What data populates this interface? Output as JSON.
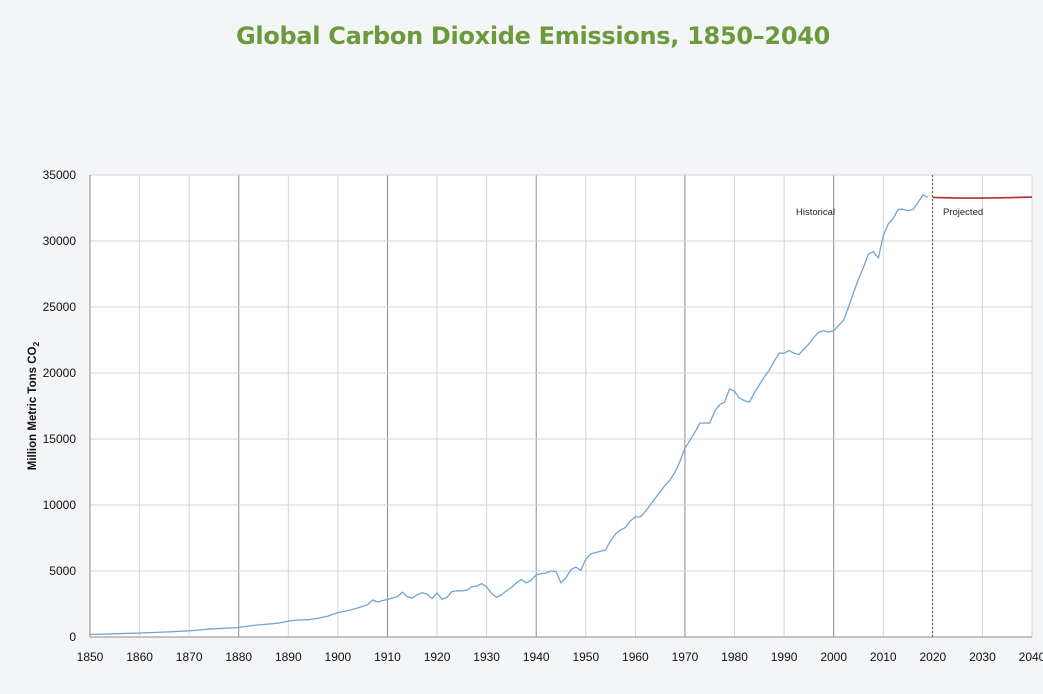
{
  "chart_data": {
    "type": "line",
    "title": "Global Carbon Dioxide Emissions, 1850–2040",
    "xlabel": "",
    "ylabel": "Million Metric Tons CO",
    "ylabel_subscript": "2",
    "xlim": [
      1850,
      2040
    ],
    "ylim": [
      0,
      35000
    ],
    "x_ticks": [
      "1850",
      "1860",
      "1870",
      "1880",
      "1890",
      "1900",
      "1910",
      "1920",
      "1930",
      "1940",
      "1950",
      "1960",
      "1970",
      "1980",
      "1990",
      "2000",
      "2010",
      "2020",
      "2030",
      "2040"
    ],
    "y_ticks": [
      "0",
      "5000",
      "10000",
      "15000",
      "20000",
      "25000",
      "30000",
      "35000"
    ],
    "grid": true,
    "annotations": [
      "Historical",
      "Projected"
    ],
    "colors": {
      "historical": "#6fa6d2",
      "projected": "#c0282e",
      "title": "#6a9a3b",
      "grid_minor": "#d4d4d4",
      "grid_major": "#8c8c8c",
      "divider": "#555555"
    },
    "series": [
      {
        "key": "historical",
        "x": [
          1850,
          1852,
          1854,
          1856,
          1858,
          1860,
          1862,
          1864,
          1866,
          1868,
          1870,
          1872,
          1874,
          1876,
          1878,
          1880,
          1882,
          1884,
          1886,
          1888,
          1890,
          1892,
          1894,
          1896,
          1898,
          1900,
          1902,
          1904,
          1906,
          1907,
          1908,
          1910,
          1912,
          1913,
          1914,
          1915,
          1916,
          1917,
          1918,
          1919,
          1920,
          1921,
          1922,
          1923,
          1924,
          1925,
          1926,
          1927,
          1928,
          1929,
          1930,
          1931,
          1932,
          1933,
          1934,
          1935,
          1936,
          1937,
          1938,
          1939,
          1940,
          1941,
          1942,
          1943,
          1944,
          1945,
          1946,
          1947,
          1948,
          1949,
          1950,
          1951,
          1952,
          1953,
          1954,
          1955,
          1956,
          1957,
          1958,
          1959,
          1960,
          1961,
          1962,
          1963,
          1964,
          1965,
          1966,
          1967,
          1968,
          1969,
          1970,
          1971,
          1972,
          1973,
          1974,
          1975,
          1976,
          1977,
          1978,
          1979,
          1980,
          1981,
          1982,
          1983,
          1984,
          1985,
          1986,
          1987,
          1988,
          1989,
          1990,
          1991,
          1992,
          1993,
          1994,
          1995,
          1996,
          1997,
          1998,
          1999,
          2000,
          2001,
          2002,
          2003,
          2004,
          2005,
          2006,
          2007,
          2008,
          2009,
          2010,
          2011,
          2012,
          2013,
          2014,
          2015,
          2016,
          2017,
          2018,
          2019
        ],
        "y": [
          200,
          210,
          230,
          260,
          280,
          300,
          330,
          360,
          390,
          430,
          470,
          530,
          600,
          640,
          680,
          720,
          830,
          920,
          980,
          1050,
          1200,
          1290,
          1310,
          1420,
          1580,
          1850,
          2000,
          2200,
          2450,
          2800,
          2650,
          2850,
          3050,
          3400,
          3050,
          2950,
          3200,
          3350,
          3250,
          2900,
          3350,
          2850,
          3000,
          3450,
          3500,
          3500,
          3550,
          3800,
          3850,
          4050,
          3800,
          3300,
          3000,
          3200,
          3500,
          3750,
          4100,
          4350,
          4100,
          4300,
          4700,
          4800,
          4850,
          5000,
          4950,
          4100,
          4500,
          5100,
          5300,
          5050,
          5900,
          6300,
          6400,
          6500,
          6600,
          7300,
          7800,
          8100,
          8300,
          8800,
          9100,
          9100,
          9500,
          10000,
          10500,
          11000,
          11500,
          11900,
          12500,
          13300,
          14300,
          14900,
          15500,
          16200,
          16200,
          16200,
          17100,
          17600,
          17800,
          18800,
          18600,
          18100,
          17900,
          17800,
          18500,
          19100,
          19700,
          20200,
          20900,
          21500,
          21500,
          21700,
          21500,
          21400,
          21800,
          22200,
          22700,
          23100,
          23200,
          23100,
          23200,
          23600,
          24000,
          25000,
          26100,
          27100,
          28000,
          29000,
          29200,
          28700,
          30400,
          31300,
          31700,
          32400,
          32400,
          32300,
          32400,
          32900,
          33500,
          33300
        ]
      },
      {
        "key": "projected",
        "x": [
          2020,
          2025,
          2030,
          2035,
          2040
        ],
        "y": [
          33300,
          33250,
          33250,
          33280,
          33330
        ]
      }
    ]
  }
}
